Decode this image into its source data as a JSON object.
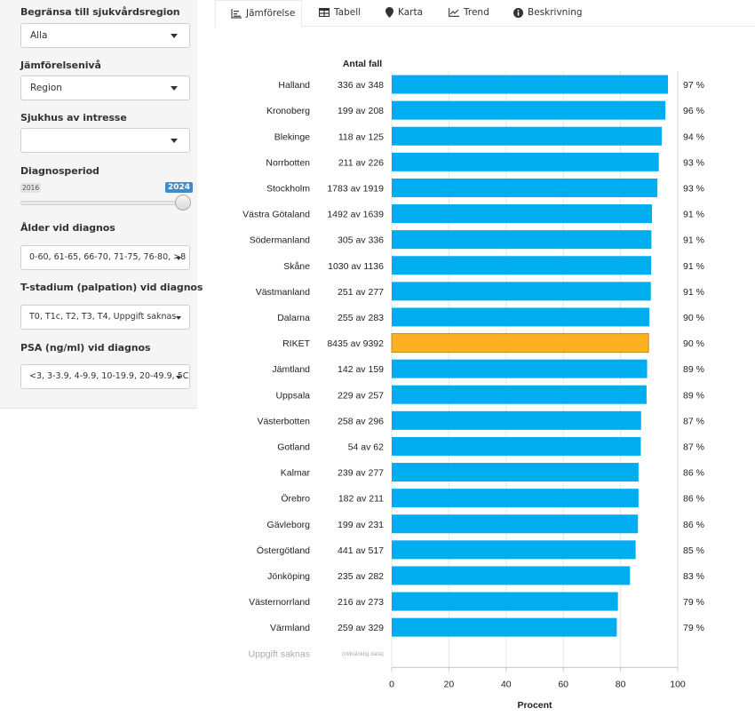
{
  "sidebar": {
    "region_filter": {
      "label": "Begränsa till sjukvårdsregion",
      "value": "Alla"
    },
    "comparison_level": {
      "label": "Jämförelsenivå",
      "value": "Region"
    },
    "hospital_of_interest": {
      "label": "Sjukhus av intresse",
      "value": ""
    },
    "diagnosis_period": {
      "label": "Diagnosperiod",
      "min_label": "2016",
      "max_label": "2024",
      "selected_start": 2024,
      "selected_end": 2024
    },
    "age_at_diagnosis": {
      "label": "Ålder vid diagnos",
      "value": "0-60, 61-65, 66-70, 71-75, 76-80, >8"
    },
    "t_stage": {
      "label": "T-stadium (palpation) vid diagnos",
      "value": "T0, T1c, T2, T3, T4, Uppgift saknas"
    },
    "psa": {
      "label": "PSA (ng/ml) vid diagnos",
      "value": "<3, 3-3.9, 4-9.9, 10-19.9, 20-49.9, 5C"
    }
  },
  "tabs": [
    {
      "label": "Jämförelse",
      "icon": "bar-chart-icon",
      "active": true
    },
    {
      "label": "Tabell",
      "icon": "table-icon",
      "active": false
    },
    {
      "label": "Karta",
      "icon": "map-marker-icon",
      "active": false
    },
    {
      "label": "Trend",
      "icon": "line-chart-icon",
      "active": false
    },
    {
      "label": "Beskrivning",
      "icon": "info-icon",
      "active": false
    }
  ],
  "colors": {
    "bar": "#00AEEF",
    "highlight_bar": "#FDB022",
    "highlight_border": "#C98A1A"
  },
  "chart_data": {
    "type": "bar",
    "orientation": "horizontal",
    "count_header": "Antal fall",
    "xlabel": "Procent",
    "xlim": [
      0,
      100
    ],
    "xticks": [
      0,
      20,
      40,
      60,
      80,
      100
    ],
    "grid": true,
    "highlight": "RIKET",
    "categories": [
      "Halland",
      "Kronoberg",
      "Blekinge",
      "Norrbotten",
      "Stockholm",
      "Västra Götaland",
      "Södermanland",
      "Skåne",
      "Västmanland",
      "Dalarna",
      "RIKET",
      "Jämtland",
      "Uppsala",
      "Västerbotten",
      "Gotland",
      "Kalmar",
      "Örebro",
      "Gävleborg",
      "Östergötland",
      "Jönköping",
      "Västernorrland",
      "Värmland",
      "Uppgift saknas"
    ],
    "counts": [
      "336 av 348",
      "199 av 208",
      "118 av 125",
      "211 av 226",
      "1783 av 1919",
      "1492 av 1639",
      "305 av 336",
      "1030 av 1136",
      "251 av 277",
      "255 av 283",
      "8435 av 9392",
      "142 av 159",
      "229 av 257",
      "258 av 296",
      "54 av 62",
      "239 av 277",
      "182 av 211",
      "199 av 231",
      "441 av 517",
      "235 av 282",
      "216 av 273",
      "259 av 329",
      "(otillräcklig data)"
    ],
    "values": [
      96.6,
      95.7,
      94.4,
      93.4,
      92.9,
      91.0,
      90.8,
      90.7,
      90.6,
      90.1,
      89.8,
      89.3,
      89.1,
      87.2,
      87.1,
      86.3,
      86.3,
      86.1,
      85.3,
      83.3,
      79.1,
      78.7,
      null
    ],
    "value_labels": [
      "97 %",
      "96 %",
      "94 %",
      "93 %",
      "93 %",
      "91 %",
      "91 %",
      "91 %",
      "91 %",
      "90 %",
      "90 %",
      "89 %",
      "89 %",
      "87 %",
      "87 %",
      "86 %",
      "86 %",
      "86 %",
      "85 %",
      "83 %",
      "79 %",
      "79 %",
      ""
    ]
  }
}
